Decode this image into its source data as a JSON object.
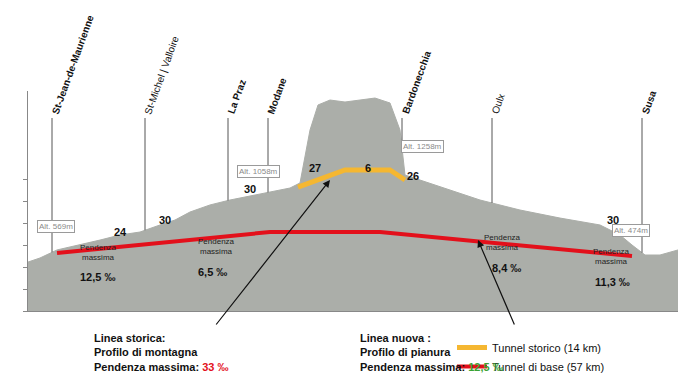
{
  "chart_data": {
    "type": "area",
    "x": [
      0,
      1.2,
      2.9,
      5.2,
      7.2,
      9.2,
      11.2,
      13.2,
      14.7,
      16.2,
      18.2,
      20.2,
      22.2,
      24.2,
      26.2,
      27.2,
      28.2,
      29.0,
      30.2,
      31.7,
      33.2,
      34.7,
      36.2,
      37.2,
      37.7,
      39.2,
      42.2,
      45.2,
      49.2,
      53.2,
      57.2,
      59.2,
      60.4,
      61.7,
      63.2,
      65
    ],
    "values": [
      445,
      482,
      555,
      600,
      645,
      691,
      718,
      782,
      827,
      900,
      964,
      1009,
      1045,
      1082,
      1118,
      1164,
      1645,
      1873,
      1918,
      1900,
      1918,
      1936,
      1891,
      1645,
      1236,
      1191,
      1100,
      1009,
      918,
      845,
      782,
      691,
      600,
      509,
      509,
      555
    ],
    "color": "#abaea9",
    "xlim": [
      0,
      65
    ],
    "ylim": [
      0,
      2000
    ],
    "yticks": [
      0,
      200,
      400,
      600,
      800,
      1000,
      1200
    ],
    "tick_labels": false,
    "legend": "bottom right",
    "lines": [
      {
        "name": "Tunnel storico (14 km)",
        "color": "#f5b731",
        "x": [
          27.0,
          31.7,
          36.2,
          37.7
        ],
        "values": [
          1127,
          1282,
          1282,
          1191
        ]
      },
      {
        "name": "Tunnel di base (57 km)",
        "color": "#e3101b",
        "x": [
          2.9,
          24.2,
          35.2,
          60.4
        ],
        "values": [
          527,
          718,
          718,
          500
        ]
      }
    ],
    "stations": [
      {
        "name": "St-Jean-de-Maurienne",
        "x": 2.4
      },
      {
        "name": "St-Michel | Valloire",
        "x": 11.7
      },
      {
        "name": "La Praz",
        "x": 20.0
      },
      {
        "name": "Modane",
        "x": 24.0
      },
      {
        "name": "Bardonecchia",
        "x": 37.4
      },
      {
        "name": "Oulx",
        "x": 46.4
      },
      {
        "name": "Susa",
        "x": 61.4
      }
    ],
    "altitudes": [
      "Alt. 569m",
      "Alt. 1058m",
      "Alt. 1258m",
      "Alt. 474m"
    ],
    "segment_grades": [
      "24",
      "30",
      "30",
      "27",
      "6",
      "26",
      "30"
    ],
    "max_grades": [
      {
        "label": "Pendenza massima",
        "value": "12,5 ‰"
      },
      {
        "label": "Pendenza massima",
        "value": "6,5 ‰"
      },
      {
        "label": "Pendenza massima",
        "value": "8,4 ‰"
      },
      {
        "label": "Pendenza massima",
        "value": "11,3 ‰"
      }
    ],
    "notes": [
      {
        "lines": [
          "Linea storica:",
          "Profilo di montagna",
          "Pendenza massima: "
        ],
        "value": "33 ‰",
        "color": "#e3101b"
      },
      {
        "lines": [
          "Linea nuova :",
          "Profilo di pianura",
          "Pendenza massima: "
        ],
        "value": "12,5 ‰",
        "color": "#3aa335"
      }
    ]
  }
}
